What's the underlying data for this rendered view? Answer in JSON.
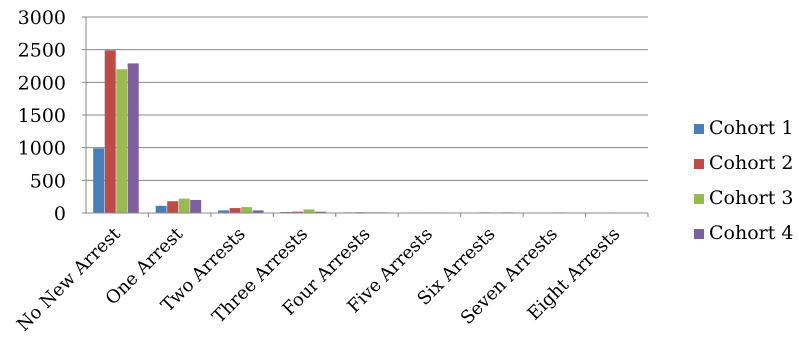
{
  "chart_data": {
    "type": "bar",
    "title": "",
    "xlabel": "",
    "ylabel": "",
    "ylim": [
      0,
      3000
    ],
    "yticks": [
      0,
      500,
      1000,
      1500,
      2000,
      2500,
      3000
    ],
    "grid": true,
    "legend_position": "right",
    "categories": [
      "No New Arrest",
      "One Arrest",
      "Two Arrests",
      "Three Arrests",
      "Four Arrests",
      "Five Arrests",
      "Six Arrests",
      "Seven Arrests",
      "Eight Arrests"
    ],
    "series": [
      {
        "name": "Cohort 1",
        "color": "#4a7ebb",
        "values": [
          990,
          110,
          40,
          15,
          10,
          8,
          5,
          3,
          2
        ]
      },
      {
        "name": "Cohort 2",
        "color": "#be4b48",
        "values": [
          2490,
          180,
          75,
          20,
          12,
          8,
          10,
          5,
          8
        ]
      },
      {
        "name": "Cohort 3",
        "color": "#98b954",
        "values": [
          2200,
          220,
          90,
          55,
          12,
          10,
          8,
          10,
          3
        ]
      },
      {
        "name": "Cohort 4",
        "color": "#7d60a0",
        "values": [
          2290,
          200,
          40,
          20,
          10,
          8,
          10,
          3,
          2
        ]
      }
    ]
  }
}
